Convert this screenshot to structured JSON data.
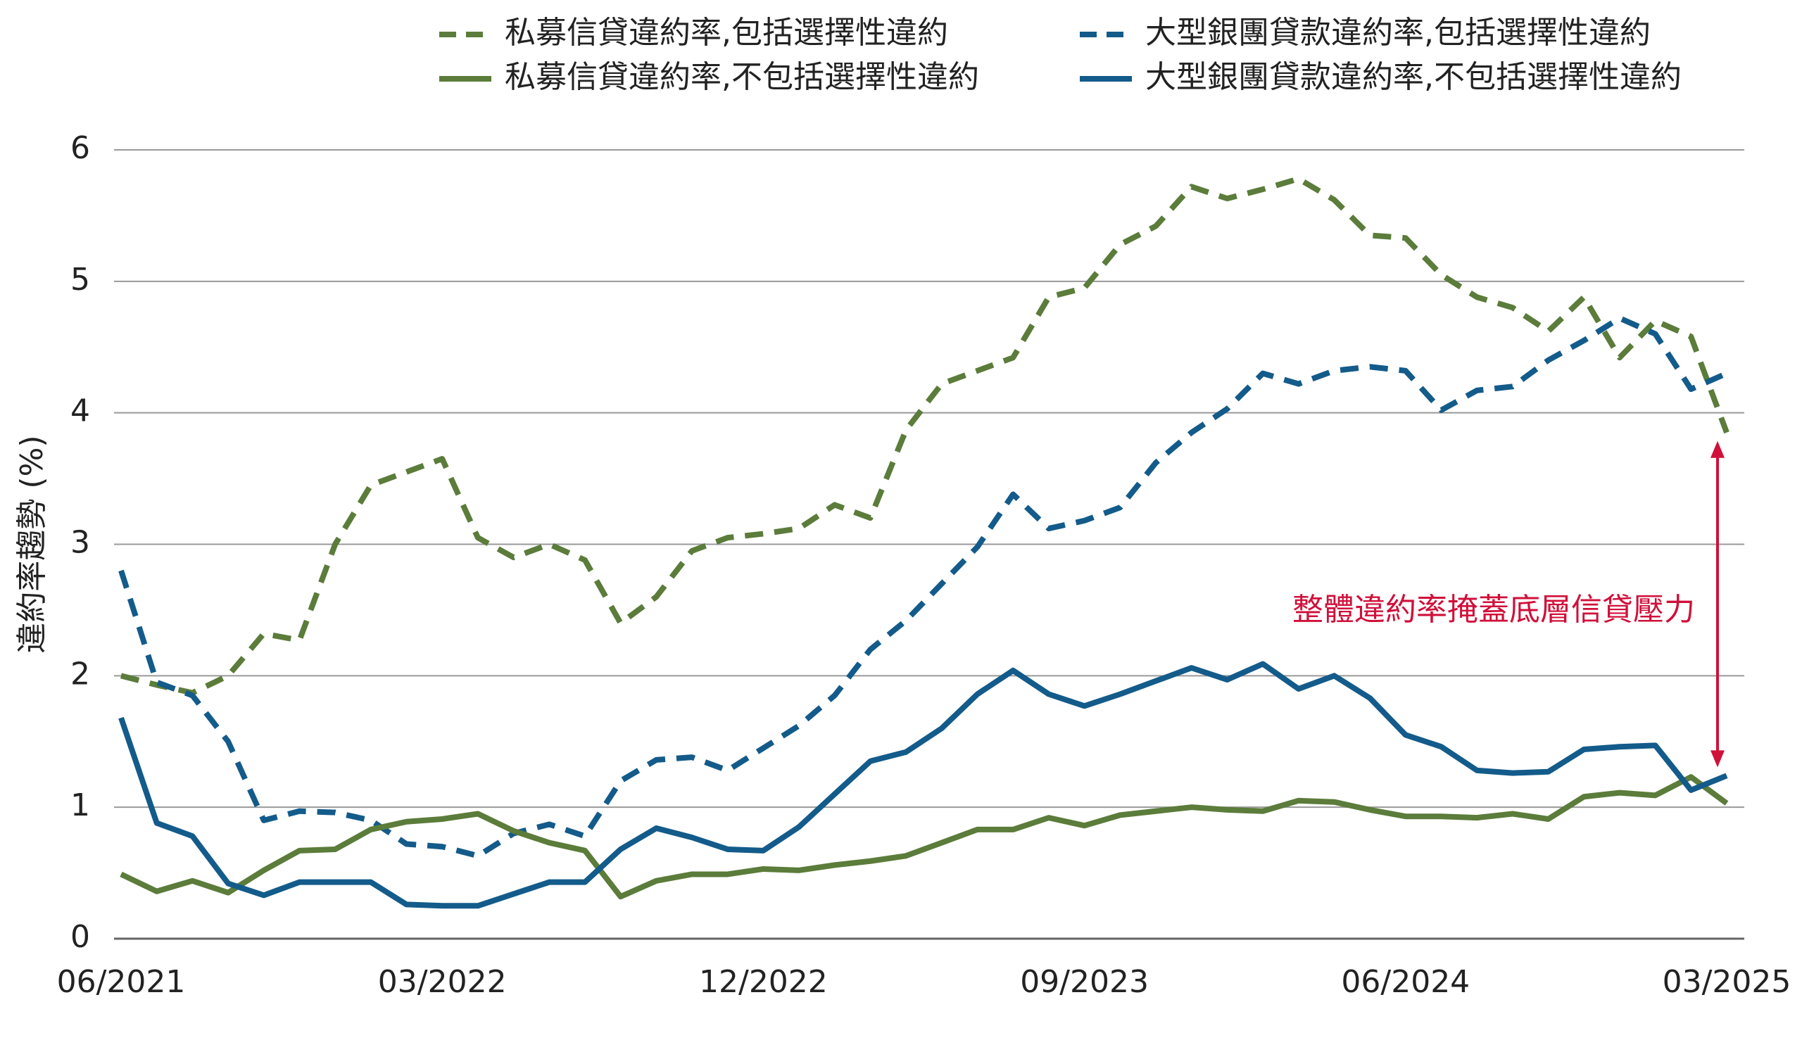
{
  "chart_data": {
    "type": "line",
    "y_label": "違約率趨勢 (%)",
    "annotation": "整體違約率掩蓋底層信貸壓力",
    "annotation_color": "#d0103a",
    "categories": [
      "06/2021",
      null,
      null,
      null,
      null,
      null,
      null,
      null,
      null,
      "03/2022",
      null,
      null,
      null,
      null,
      null,
      null,
      null,
      null,
      "12/2022",
      null,
      null,
      null,
      null,
      null,
      null,
      null,
      null,
      "09/2023",
      null,
      null,
      null,
      null,
      null,
      null,
      null,
      null,
      "06/2024",
      null,
      null,
      null,
      null,
      null,
      null,
      null,
      null,
      "03/2025"
    ],
    "series": [
      {
        "name": "私募信貸違約率,包括選擇性違約",
        "color": "#5b7c3a",
        "dashed": true,
        "values": [
          2.0,
          1.93,
          1.87,
          2.0,
          2.32,
          2.27,
          3.0,
          3.45,
          3.55,
          3.65,
          3.05,
          2.9,
          3.0,
          2.88,
          2.4,
          2.6,
          2.95,
          3.05,
          3.08,
          3.12,
          3.3,
          3.2,
          3.87,
          4.22,
          4.32,
          4.42,
          4.88,
          4.95,
          5.28,
          5.42,
          5.72,
          5.63,
          5.7,
          5.78,
          5.62,
          5.35,
          5.33,
          5.05,
          4.88,
          4.8,
          4.62,
          4.88,
          4.42,
          4.7,
          4.58,
          3.85
        ]
      },
      {
        "name": "大型銀團貸款違約率,包括選擇性違約",
        "color": "#135b8a",
        "dashed": true,
        "values": [
          2.8,
          1.95,
          1.85,
          1.5,
          0.9,
          0.97,
          0.96,
          0.9,
          0.72,
          0.7,
          0.63,
          0.8,
          0.87,
          0.78,
          1.2,
          1.36,
          1.38,
          1.28,
          1.45,
          1.62,
          1.85,
          2.2,
          2.42,
          2.7,
          2.98,
          3.38,
          3.12,
          3.18,
          3.28,
          3.62,
          3.85,
          4.03,
          4.3,
          4.22,
          4.32,
          4.35,
          4.32,
          4.02,
          4.17,
          4.2,
          4.4,
          4.55,
          4.72,
          4.6,
          4.18,
          4.3
        ]
      },
      {
        "name": "私募信貸違約率,不包括選擇性違約",
        "color": "#5b7c3a",
        "dashed": false,
        "values": [
          0.49,
          0.36,
          0.44,
          0.35,
          0.52,
          0.67,
          0.68,
          0.83,
          0.89,
          0.91,
          0.95,
          0.82,
          0.73,
          0.67,
          0.32,
          0.44,
          0.49,
          0.49,
          0.53,
          0.52,
          0.56,
          0.59,
          0.63,
          0.73,
          0.83,
          0.83,
          0.92,
          0.86,
          0.94,
          0.97,
          1.0,
          0.98,
          0.97,
          1.05,
          1.04,
          0.98,
          0.93,
          0.93,
          0.92,
          0.95,
          0.91,
          1.08,
          1.11,
          1.09,
          1.23,
          1.03
        ]
      },
      {
        "name": "大型銀團貸款違約率,不包括選擇性違約",
        "color": "#135b8a",
        "dashed": false,
        "values": [
          1.68,
          0.88,
          0.78,
          0.42,
          0.33,
          0.43,
          0.43,
          0.43,
          0.26,
          0.25,
          0.25,
          0.34,
          0.43,
          0.43,
          0.68,
          0.84,
          0.77,
          0.68,
          0.67,
          0.85,
          1.1,
          1.35,
          1.42,
          1.6,
          1.86,
          2.04,
          1.86,
          1.77,
          1.86,
          1.96,
          2.06,
          1.97,
          2.09,
          1.9,
          2.0,
          1.83,
          1.55,
          1.46,
          1.28,
          1.26,
          1.27,
          1.44,
          1.46,
          1.47,
          1.13,
          1.24
        ]
      }
    ],
    "ylim": [
      0,
      6
    ],
    "yticks": [
      0,
      1,
      2,
      3,
      4,
      5,
      6
    ],
    "grid": true
  }
}
